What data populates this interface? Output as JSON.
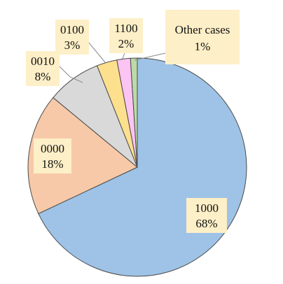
{
  "chart_data": {
    "type": "pie",
    "title": "",
    "slices": [
      {
        "name": "1000",
        "value": 68,
        "label": "68%",
        "color": "#9ec3e6"
      },
      {
        "name": "0000",
        "value": 18,
        "label": "18%",
        "color": "#f7c9a8"
      },
      {
        "name": "0010",
        "value": 8,
        "label": "8%",
        "color": "#d9d9d9"
      },
      {
        "name": "0100",
        "value": 3,
        "label": "3%",
        "color": "#fde08e"
      },
      {
        "name": "1100",
        "value": 2,
        "label": "2%",
        "color": "#fbc4f2"
      },
      {
        "name": "Other cases",
        "value": 1,
        "label": "1%",
        "color": "#bcd9a8"
      }
    ],
    "legend": "none",
    "label_box_color": "#fdefc7"
  }
}
